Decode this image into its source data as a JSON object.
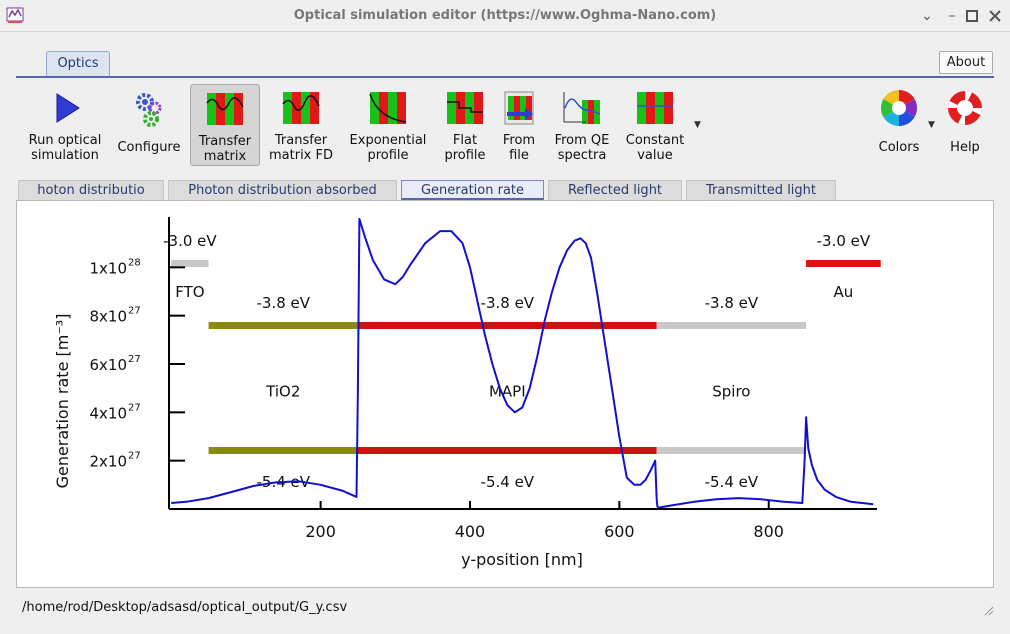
{
  "window": {
    "title": "Optical simulation editor (https://www.Oghma-Nano.com)"
  },
  "ribbon": {
    "tab": "Optics",
    "about": "About",
    "tools": [
      {
        "line1": "Run optical",
        "line2": "simulation",
        "icon": "play-icon"
      },
      {
        "line1": "Configure",
        "line2": "",
        "icon": "gears-icon"
      },
      {
        "line1": "Transfer",
        "line2": "matrix",
        "icon": "transfer-matrix-icon"
      },
      {
        "line1": "Transfer",
        "line2": "matrix FD",
        "icon": "transfer-matrix-fd-icon"
      },
      {
        "line1": "Exponential",
        "line2": "profile",
        "icon": "exponential-profile-icon"
      },
      {
        "line1": "Flat",
        "line2": "profile",
        "icon": "flat-profile-icon"
      },
      {
        "line1": "From",
        "line2": "file",
        "icon": "from-file-icon"
      },
      {
        "line1": "From QE",
        "line2": "spectra",
        "icon": "qe-spectra-icon"
      },
      {
        "line1": "Constant",
        "line2": "value",
        "icon": "constant-value-icon"
      },
      {
        "line1": "Colors",
        "line2": "",
        "icon": "color-wheel-icon"
      },
      {
        "line1": "Help",
        "line2": "",
        "icon": "lifebuoy-icon"
      }
    ]
  },
  "tabs": [
    "hoton distributio",
    "Photon distribution absorbed",
    "Generation rate",
    "Reflected light",
    "Transmitted light"
  ],
  "status": {
    "path": "/home/rod/Desktop/adsasd/optical_output/G_y.csv"
  },
  "chart_data": {
    "type": "line",
    "xlabel": "y-position [nm]",
    "ylabel": "Generation rate [m⁻³]",
    "xlim": [
      -3,
      945
    ],
    "ylim": [
      0,
      1.2e+28
    ],
    "xticks": [
      200,
      400,
      600,
      800
    ],
    "yticks": [
      {
        "value": 2e+27,
        "mant": "2x10",
        "exp": "27"
      },
      {
        "value": 4e+27,
        "mant": "4x10",
        "exp": "27"
      },
      {
        "value": 6e+27,
        "mant": "6x10",
        "exp": "27"
      },
      {
        "value": 8e+27,
        "mant": "8x10",
        "exp": "27"
      },
      {
        "value": 1e+28,
        "mant": "1x10",
        "exp": "28"
      }
    ],
    "series_color": "#1010d0",
    "series": [
      {
        "x": [
          0,
          20,
          50,
          80,
          110,
          140,
          170,
          200,
          230,
          248,
          250,
          252,
          260,
          270,
          285,
          300,
          310,
          320,
          340,
          360,
          375,
          390,
          400,
          410,
          420,
          430,
          440,
          450,
          460,
          470,
          480,
          490,
          500,
          510,
          520,
          530,
          540,
          548,
          555,
          562,
          570,
          580,
          590,
          600,
          610,
          620,
          628,
          635,
          642,
          648,
          650,
          651,
          653,
          670,
          700,
          730,
          760,
          790,
          820,
          845,
          848,
          850,
          853,
          858,
          865,
          875,
          890,
          910,
          940
        ],
        "y": [
          2.5e+26,
          3e+26,
          4.5e+26,
          7e+26,
          9.5e+26,
          1.1e+27,
          1.15e+27,
          1e+27,
          7.5e+26,
          5e+26,
          5e+27,
          1.2e+28,
          1.12e+28,
          1.03e+28,
          9.5e+27,
          9.3e+27,
          9.6e+27,
          1.01e+28,
          1.1e+28,
          1.15e+28,
          1.15e+28,
          1.1e+28,
          1e+28,
          8.6e+27,
          7.2e+27,
          6e+27,
          5e+27,
          4.3e+27,
          4e+27,
          4.2e+27,
          5e+27,
          6.3e+27,
          7.8e+27,
          9e+27,
          1e+28,
          1.07e+28,
          1.11e+28,
          1.12e+28,
          1.1e+28,
          1.04e+28,
          9e+27,
          7e+27,
          5e+27,
          3e+27,
          1.3e+27,
          1e+27,
          1e+27,
          1.2e+27,
          1.6e+27,
          2e+27,
          4e+26,
          1e+26,
          6e+25,
          1.5e+26,
          3e+26,
          4e+26,
          4.5e+26,
          4e+26,
          3e+26,
          2.5e+26,
          2e+27,
          3.8e+27,
          2.5e+27,
          1.8e+27,
          1.2e+27,
          8e+26,
          5e+26,
          3e+26,
          2e+26
        ]
      }
    ],
    "layers": [
      {
        "name": "FTO",
        "x0": 0,
        "x1": 50,
        "lumo": "-3.0 eV",
        "homo": "",
        "lumo_color": "#c8c8c8",
        "homo_color": ""
      },
      {
        "name": "TiO2",
        "x0": 50,
        "x1": 250,
        "lumo": "-3.8 eV",
        "homo": "-5.4 eV",
        "lumo_color": "#8a8a10",
        "homo_color": "#8a8a10"
      },
      {
        "name": "MAPI",
        "x0": 250,
        "x1": 650,
        "lumo": "-3.8 eV",
        "homo": "-5.4 eV",
        "lumo_color": "#cc1111",
        "homo_color": "#cc1111"
      },
      {
        "name": "Spiro",
        "x0": 650,
        "x1": 850,
        "lumo": "-3.8 eV",
        "homo": "-5.4 eV",
        "lumo_color": "#c8c8c8",
        "homo_color": "#c8c8c8"
      },
      {
        "name": "Au",
        "x0": 850,
        "x1": 950,
        "lumo": "-3.0 eV",
        "homo": "",
        "lumo_color": "#dd1111",
        "homo_color": ""
      }
    ]
  }
}
